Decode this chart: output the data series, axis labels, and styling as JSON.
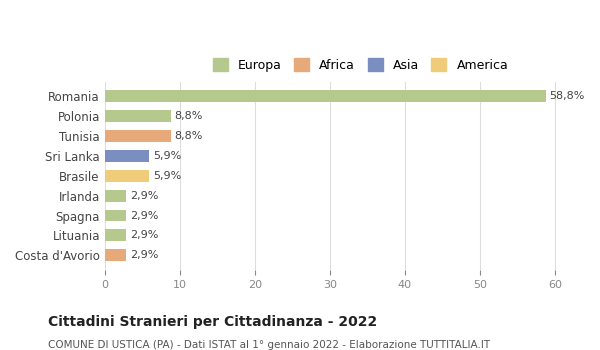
{
  "countries": [
    "Romania",
    "Polonia",
    "Tunisia",
    "Sri Lanka",
    "Brasile",
    "Irlanda",
    "Spagna",
    "Lituania",
    "Costa d'Avorio"
  ],
  "values": [
    58.8,
    8.8,
    8.8,
    5.9,
    5.9,
    2.9,
    2.9,
    2.9,
    2.9
  ],
  "labels": [
    "58,8%",
    "8,8%",
    "8,8%",
    "5,9%",
    "5,9%",
    "2,9%",
    "2,9%",
    "2,9%",
    "2,9%"
  ],
  "colors": [
    "#b5c98e",
    "#b5c98e",
    "#e8a97a",
    "#7a8fc0",
    "#f0cc7a",
    "#b5c98e",
    "#b5c98e",
    "#b5c98e",
    "#e8a97a"
  ],
  "continents": [
    "Europa",
    "Europa",
    "Africa",
    "Asia",
    "America",
    "Europa",
    "Europa",
    "Europa",
    "Africa"
  ],
  "legend_labels": [
    "Europa",
    "Africa",
    "Asia",
    "America"
  ],
  "legend_colors": [
    "#b5c98e",
    "#e8a97a",
    "#7a8fc0",
    "#f0cc7a"
  ],
  "title": "Cittadini Stranieri per Cittadinanza - 2022",
  "subtitle": "COMUNE DI USTICA (PA) - Dati ISTAT al 1° gennaio 2022 - Elaborazione TUTTITALIA.IT",
  "xlim": [
    0,
    62
  ],
  "xticks": [
    0,
    10,
    20,
    30,
    40,
    50,
    60
  ],
  "background_color": "#ffffff",
  "grid_color": "#dddddd"
}
